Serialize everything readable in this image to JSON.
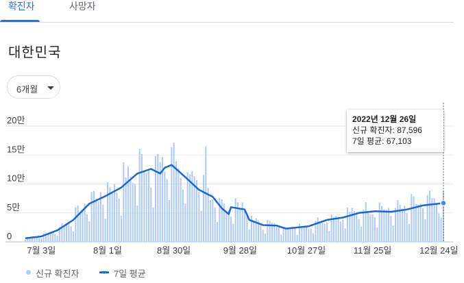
{
  "tabs": [
    {
      "label": "확진자",
      "active": true
    },
    {
      "label": "사망자",
      "active": false
    }
  ],
  "region": "대한민국",
  "period_select": {
    "selected": "6개월"
  },
  "legend": {
    "bar": "신규 확진자",
    "line": "7일 평균"
  },
  "tooltip": {
    "date": "2022년 12월 26일",
    "new_cases_label": "신규 확진자:",
    "new_cases_value": "87,596",
    "avg_label": "7일 평균:",
    "avg_value": "67,103"
  },
  "colors": {
    "bar": "#aecbfa",
    "line": "#1967d2",
    "grid": "#e8eaed",
    "active_tab": "#1a73e8"
  },
  "chart_data": {
    "type": "bar",
    "x_range": [
      "2022-06-26",
      "2022-12-26"
    ],
    "ylim": [
      0,
      200000
    ],
    "y_ticks": [
      {
        "value": 0,
        "label": "0"
      },
      {
        "value": 50000,
        "label": "5만"
      },
      {
        "value": 100000,
        "label": "10만"
      },
      {
        "value": 150000,
        "label": "15만"
      },
      {
        "value": 200000,
        "label": "20만"
      }
    ],
    "x_ticks": [
      {
        "date": "2022-07-03",
        "label": "7월 3일"
      },
      {
        "date": "2022-08-01",
        "label": "8월 1일"
      },
      {
        "date": "2022-08-30",
        "label": "8월 30일"
      },
      {
        "date": "2022-09-28",
        "label": "9월 28일"
      },
      {
        "date": "2022-10-27",
        "label": "10월 27일"
      },
      {
        "date": "2022-11-25",
        "label": "11월 25일"
      },
      {
        "date": "2022-12-24",
        "label": "12월 24일"
      }
    ],
    "weekly_avg_line": [
      [
        "2022-06-26",
        6200
      ],
      [
        "2022-07-03",
        9500
      ],
      [
        "2022-07-10",
        20000
      ],
      [
        "2022-07-17",
        38000
      ],
      [
        "2022-07-24",
        66000
      ],
      [
        "2022-07-31",
        79000
      ],
      [
        "2022-08-07",
        94000
      ],
      [
        "2022-08-14",
        118000
      ],
      [
        "2022-08-20",
        126000
      ],
      [
        "2022-08-24",
        118000
      ],
      [
        "2022-08-26",
        128000
      ],
      [
        "2022-08-29",
        133000
      ],
      [
        "2022-09-04",
        112000
      ],
      [
        "2022-09-10",
        90000
      ],
      [
        "2022-09-16",
        78000
      ],
      [
        "2022-09-20",
        58000
      ],
      [
        "2022-09-23",
        48000
      ],
      [
        "2022-09-24",
        60000
      ],
      [
        "2022-09-30",
        56000
      ],
      [
        "2022-10-02",
        38000
      ],
      [
        "2022-10-08",
        29000
      ],
      [
        "2022-10-14",
        28000
      ],
      [
        "2022-10-18",
        23000
      ],
      [
        "2022-10-28",
        27000
      ],
      [
        "2022-11-05",
        38000
      ],
      [
        "2022-11-12",
        42000
      ],
      [
        "2022-11-19",
        50000
      ],
      [
        "2022-11-26",
        53000
      ],
      [
        "2022-12-03",
        52000
      ],
      [
        "2022-12-10",
        56000
      ],
      [
        "2022-12-17",
        63000
      ],
      [
        "2022-12-26",
        67103
      ]
    ]
  }
}
